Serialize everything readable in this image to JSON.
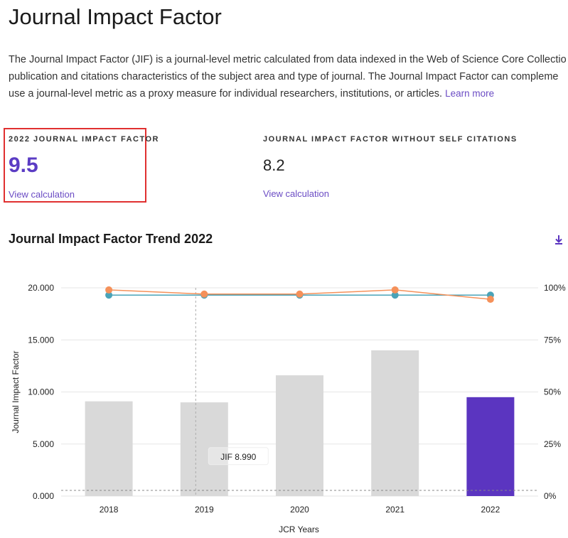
{
  "page": {
    "title": "Journal Impact Factor",
    "description_lines": [
      "The Journal Impact Factor (JIF) is a journal-level metric calculated from data indexed in the Web of Science Core Collectio",
      "publication and citations characteristics of the subject area and type of journal. The Journal Impact Factor can compleme",
      "use a journal-level metric as a proxy measure for individual researchers, institutions, or articles."
    ],
    "learn_more": "Learn more"
  },
  "metrics": {
    "jif": {
      "label": "2022 JOURNAL IMPACT FACTOR",
      "value": "9.5",
      "link": "View calculation"
    },
    "jif_no_self": {
      "label": "JOURNAL IMPACT FACTOR WITHOUT SELF CITATIONS",
      "value": "8.2",
      "link": "View calculation"
    }
  },
  "trend": {
    "title": "Journal Impact Factor Trend 2022",
    "download_icon": "download-icon"
  },
  "chart_data": {
    "type": "bar",
    "categories": [
      "2018",
      "2019",
      "2020",
      "2021",
      "2022"
    ],
    "series": [
      {
        "values": [
          9.1,
          9.0,
          11.6,
          14.0,
          9.5
        ],
        "colors": [
          "#d9d9d9",
          "#d9d9d9",
          "#d9d9d9",
          "#d9d9d9",
          "#5b35c0"
        ]
      }
    ],
    "line_series": [
      {
        "values": [
          96.5,
          96.5,
          96.5,
          96.5,
          96.5
        ],
        "color": "#4aa3b8"
      },
      {
        "values": [
          99,
          97,
          97,
          99,
          94.5
        ],
        "color": "#f5915a"
      }
    ],
    "ylabel": "Journal Impact Factor",
    "xlabel": "JCR Years",
    "ylim": [
      0,
      20
    ],
    "y_ticks": [
      "0.000",
      "5.000",
      "10.000",
      "15.000",
      "20.000"
    ],
    "y2lim": [
      0,
      100
    ],
    "y2_ticks": [
      "0%",
      "25%",
      "50%",
      "75%",
      "100%"
    ],
    "hover_label": "JIF 8.990",
    "grid": true
  }
}
